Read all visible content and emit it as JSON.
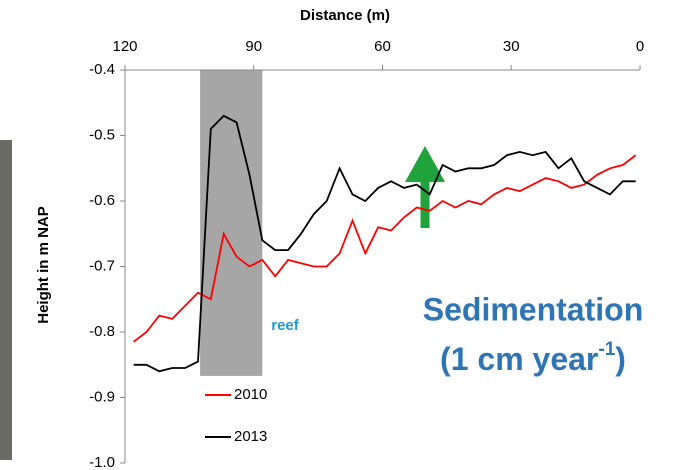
{
  "chart_data": {
    "type": "line",
    "x_label": "Distance (m)",
    "y_label": "Height in m NAP",
    "x": [
      118,
      115,
      112,
      109,
      106,
      103,
      100,
      97,
      94,
      91,
      88,
      85,
      82,
      79,
      76,
      73,
      70,
      67,
      64,
      61,
      58,
      55,
      52,
      49,
      46,
      43,
      40,
      37,
      34,
      31,
      28,
      25,
      22,
      19,
      16,
      13,
      10,
      7,
      4,
      1
    ],
    "series": [
      {
        "name": "2010",
        "color": "#ff0000",
        "values": [
          -0.815,
          -0.8,
          -0.775,
          -0.78,
          -0.76,
          -0.74,
          -0.75,
          -0.65,
          -0.685,
          -0.7,
          -0.69,
          -0.715,
          -0.69,
          -0.695,
          -0.7,
          -0.7,
          -0.68,
          -0.63,
          -0.68,
          -0.64,
          -0.645,
          -0.625,
          -0.61,
          -0.615,
          -0.6,
          -0.61,
          -0.6,
          -0.605,
          -0.59,
          -0.58,
          -0.585,
          -0.575,
          -0.565,
          -0.57,
          -0.58,
          -0.575,
          -0.56,
          -0.55,
          -0.545,
          -0.53
        ]
      },
      {
        "name": "2013",
        "color": "#000000",
        "values": [
          -0.85,
          -0.85,
          -0.86,
          -0.855,
          -0.855,
          -0.845,
          -0.49,
          -0.47,
          -0.48,
          -0.56,
          -0.66,
          -0.675,
          -0.675,
          -0.65,
          -0.62,
          -0.6,
          -0.55,
          -0.59,
          -0.6,
          -0.58,
          -0.57,
          -0.58,
          -0.575,
          -0.59,
          -0.545,
          -0.555,
          -0.55,
          -0.55,
          -0.545,
          -0.53,
          -0.525,
          -0.53,
          -0.525,
          -0.55,
          -0.535,
          -0.57,
          -0.58,
          -0.59,
          -0.57,
          -0.57
        ]
      }
    ],
    "xlim": [
      120,
      0
    ],
    "xticks": [
      120,
      90,
      60,
      30,
      0
    ],
    "ylim": [
      -0.4,
      -1.0
    ],
    "yticks": [
      -0.4,
      -0.5,
      -0.6,
      -0.7,
      -0.8,
      -0.9,
      {
        "value": -1.0,
        "label": "-1.0"
      }
    ],
    "reef_zone": {
      "x": [
        102.5,
        88
      ],
      "y": [
        -0.4,
        -0.867
      ],
      "label": "reef",
      "color": "#a6a6a6"
    },
    "annotation": {
      "line1": "Sedimentation",
      "line2_start": "(1 cm year",
      "line2_sup": "-1",
      "line2_end": ")",
      "color": "#2e75b6"
    }
  }
}
